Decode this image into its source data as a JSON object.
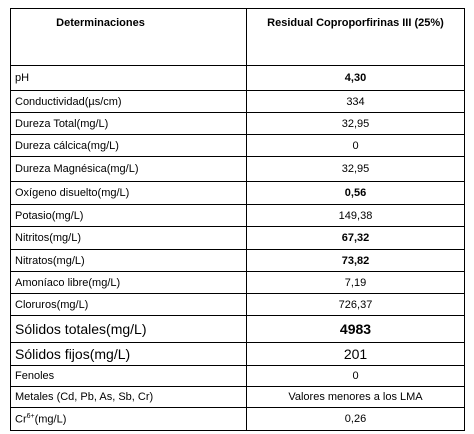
{
  "table": {
    "header": [
      "Determinaciones",
      "Residual Coproporfirinas III (25%)"
    ],
    "rows": [
      {
        "label": "pH",
        "value": "4,30"
      },
      {
        "label": "Conductividad(µs/cm)",
        "value": "334"
      },
      {
        "label": "Dureza Total(mg/L)",
        "value": "32,95"
      },
      {
        "label": "Dureza cálcica(mg/L)",
        "value": "0"
      },
      {
        "label": "Dureza Magnésica(mg/L)",
        "value": "32,95"
      },
      {
        "label": "Oxígeno disuelto(mg/L)",
        "value": "0,56"
      },
      {
        "label": "Potasio(mg/L)",
        "value": "149,38"
      },
      {
        "label": "Nitritos(mg/L)",
        "value": "67,32"
      },
      {
        "label": "Nitratos(mg/L)",
        "value": "73,82"
      },
      {
        "label": "Amoníaco libre(mg/L)",
        "value": "7,19"
      },
      {
        "label": "Cloruros(mg/L)",
        "value": "726,37"
      },
      {
        "label": "Sólidos totales(mg/L)",
        "value": "4983"
      },
      {
        "label": "Sólidos fijos(mg/L)",
        "value": "201"
      },
      {
        "label": "Fenoles",
        "value": "0"
      },
      {
        "label": "Metales (Cd, Pb, As, Sb, Cr)",
        "value": "Valores menores a los LMA"
      },
      {
        "label": "Cr",
        "label_sup": "6+",
        "label_rest": "(mg/L)",
        "value": "0,26"
      }
    ]
  }
}
